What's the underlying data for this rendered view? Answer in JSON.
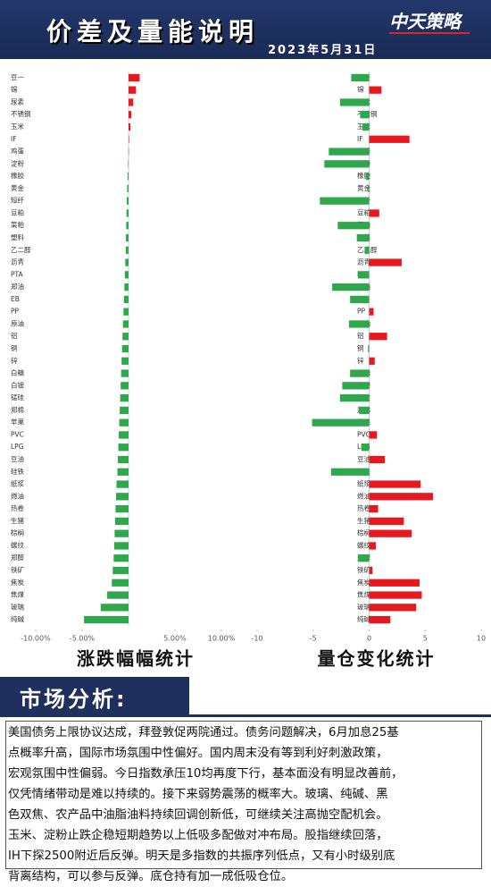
{
  "header": {
    "title": "价差及量能说明",
    "date": "2023年5月31日",
    "logo": "中天策略"
  },
  "chart_data": [
    {
      "type": "barh",
      "caption": "涨跌幅幅统计",
      "categories": [
        "豆一",
        "锡",
        "尿素",
        "不锈钢",
        "玉米",
        "IF",
        "鸡蛋",
        "淀粉",
        "橡胶",
        "黄金",
        "短纤",
        "豆粕",
        "菜粕",
        "塑料",
        "乙二醇",
        "沥青",
        "PTA",
        "郑油",
        "EB",
        "PP",
        "原油",
        "铝",
        "铜",
        "锌",
        "白糖",
        "白银",
        "锰硅",
        "郑棉",
        "苹果",
        "PVC",
        "LPG",
        "豆油",
        "硅铁",
        "纸浆",
        "燃油",
        "热卷",
        "生猪",
        "棕榈",
        "螺纹",
        "郑醇",
        "铁矿",
        "焦炭",
        "焦煤",
        "玻璃",
        "纯碱"
      ],
      "values": [
        1.2,
        0.8,
        0.5,
        0.3,
        0.2,
        0,
        -0.02,
        -0.05,
        -0.1,
        -0.15,
        -0.2,
        -0.22,
        -0.25,
        -0.28,
        -0.3,
        -0.35,
        -0.4,
        -0.45,
        -0.5,
        -0.55,
        -0.6,
        -0.65,
        -0.7,
        -0.75,
        -0.8,
        -0.85,
        -0.9,
        -0.95,
        -1.0,
        -1.05,
        -1.1,
        -1.15,
        -1.2,
        -1.3,
        -1.35,
        -1.4,
        -1.45,
        -1.5,
        -1.55,
        -1.6,
        -1.7,
        -1.8,
        -2.3,
        -3.0,
        -4.8
      ],
      "positive_color": "#e8191e",
      "negative_color": "#2ea84a",
      "xlim": [
        -10,
        10
      ],
      "xticks": [
        {
          "value": -10,
          "label": "-10.00%"
        },
        {
          "value": -5,
          "label": "-5.00%"
        },
        {
          "value": 5,
          "label": "5.00%"
        },
        {
          "value": 10,
          "label": "10.00%"
        }
      ]
    },
    {
      "type": "barh",
      "caption": "量仓变化统计",
      "categories": [
        "豆一",
        "锡",
        "尿素",
        "不锈钢",
        "玉米",
        "IF",
        "鸡蛋",
        "淀粉",
        "橡胶",
        "黄金",
        "短纤",
        "豆粕",
        "菜粕",
        "塑料",
        "乙二醇",
        "沥青",
        "PTA",
        "郑油",
        "EB",
        "PP",
        "原油",
        "铝",
        "铜",
        "锌",
        "白糖",
        "白银",
        "锰硅",
        "郑棉",
        "苹果",
        "PVC",
        "LPG",
        "豆油",
        "硅铁",
        "纸浆",
        "燃油",
        "热卷",
        "生猪",
        "棕榈",
        "螺纹",
        "郑醇",
        "铁矿",
        "焦炭",
        "焦煤",
        "玻璃",
        "纯碱"
      ],
      "values": [
        -1.6,
        1.1,
        -2.6,
        -0.8,
        -0.6,
        3.6,
        -3.6,
        -4.0,
        -0.3,
        -0.1,
        -4.4,
        0.9,
        -2.8,
        -1.1,
        -0.4,
        2.9,
        -1.0,
        -3.3,
        -1.7,
        0.4,
        -1.8,
        1.6,
        -0.1,
        0.5,
        -1.7,
        -2.4,
        -2.6,
        -0.9,
        -5.1,
        0.7,
        -0.7,
        1.4,
        -3.4,
        4.6,
        5.7,
        0.8,
        3.1,
        3.8,
        0.6,
        -1.0,
        0.3,
        4.5,
        4.7,
        4.2,
        1.9
      ],
      "positive_color": "#e8191e",
      "negative_color": "#2ea84a",
      "xlim": [
        -10,
        10
      ],
      "xticks": [
        -10,
        -5,
        0,
        5,
        10
      ]
    }
  ],
  "analysis": {
    "title": "市场分析:",
    "lines": [
      "美国债务上限协议达成，拜登敦促两院通过。债务问题解决，6月加息25基",
      "点概率升高，国际市场氛围中性偏好。国内周末没有等到利好刺激政策，",
      "宏观氛围中性偏弱。今日指数承压10均再度下行，基本面没有明显改善前，",
      "仅凭情绪带动是难以持续的。接下来弱势震荡的概率大。玻璃、纯碱、黑",
      "色双焦、农产品中油脂油料持续回调创新低，可继续关注高抛空配机会。",
      "玉米、淀粉止跌企稳短期趋势以上低吸多配做对冲布局。股指继续回落，",
      "IH下探2500附近后反弹。明天是多指数的共振序列低点，又有小时级别底",
      "背离结构，可以参与反弹。底仓持有加一成低吸仓位。"
    ]
  }
}
